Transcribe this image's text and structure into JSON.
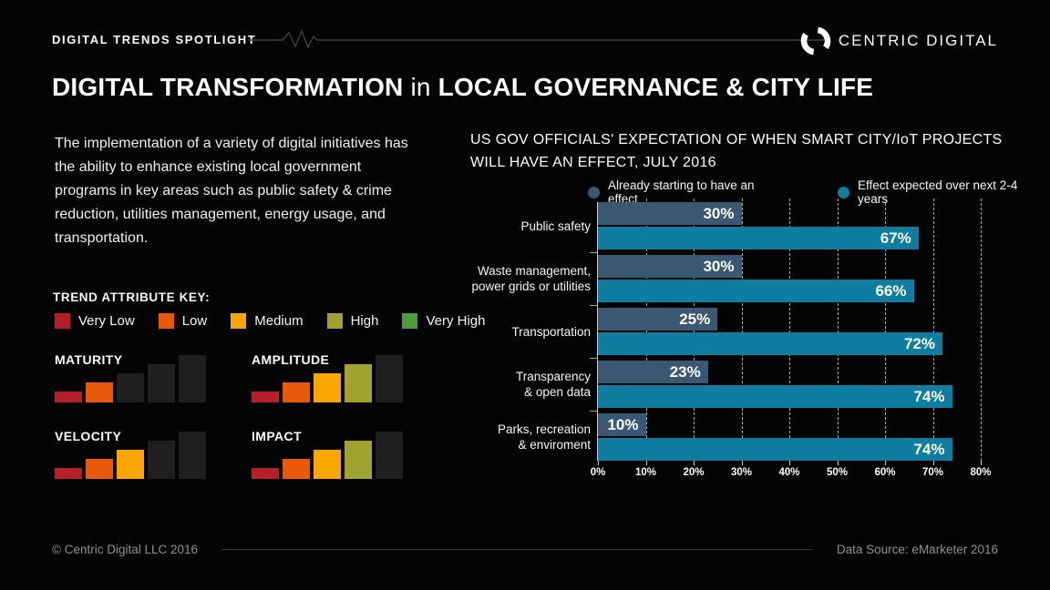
{
  "header": {
    "label": "DIGITAL TRENDS SPOTLIGHT",
    "brand": "CENTRIC DIGITAL"
  },
  "title": {
    "part_bold_1": "DIGITAL TRANSFORMATION",
    "part_mid": " in ",
    "part_bold_2": "LOCAL GOVERNANCE & CITY LIFE"
  },
  "intro_text": "The implementation of a variety of digital initiatives has the ability to enhance existing local government programs in key areas such as public safety & crime reduction, utilities management, energy usage, and transportation.",
  "trend_key": {
    "title": "TREND ATTRIBUTE KEY:",
    "empty_color": "#1f1f1f",
    "levels": [
      {
        "label": "Very Low",
        "color": "#b32029"
      },
      {
        "label": "Low",
        "color": "#e85a0a"
      },
      {
        "label": "Medium",
        "color": "#f9a602"
      },
      {
        "label": "High",
        "color": "#9ea42f"
      },
      {
        "label": "Very High",
        "color": "#4f9c3a"
      }
    ]
  },
  "trend_attributes": [
    {
      "label": "MATURITY",
      "level": 2
    },
    {
      "label": "AMPLITUDE",
      "level": 4
    },
    {
      "label": "VELOCITY",
      "level": 3
    },
    {
      "label": "IMPACT",
      "level": 4
    }
  ],
  "chart_data": {
    "type": "bar",
    "orientation": "horizontal",
    "title": "US GOV OFFICIALS' EXPECTATION OF WHEN SMART CITY/IoT PROJECTS WILL HAVE AN EFFECT, JULY 2016",
    "categories": [
      "Public safety",
      "Waste management,\npower grids or utilities",
      "Transportation",
      "Transparency\n& open data",
      "Parks, recreation\n& enviroment"
    ],
    "series": [
      {
        "name": "Already starting to have an effect",
        "color": "#3a5871",
        "values": [
          30,
          30,
          25,
          23,
          10
        ]
      },
      {
        "name": "Effect expected over next 2-4 years",
        "color": "#0e7d9f",
        "values": [
          67,
          66,
          72,
          74,
          74
        ]
      }
    ],
    "value_labels": [
      [
        "30%",
        "67%"
      ],
      [
        "30%",
        "66%"
      ],
      [
        "25%",
        "72%"
      ],
      [
        "23%",
        "74%"
      ],
      [
        "10%",
        "74%"
      ]
    ],
    "xlabel": "",
    "ylabel": "",
    "xlim": [
      0,
      80
    ],
    "ticks": [
      "0%",
      "10%",
      "20%",
      "30%",
      "40%",
      "50%",
      "60%",
      "70%",
      "80%"
    ],
    "grid": "dashed-vertical",
    "legend_position": "top"
  },
  "footer": {
    "left": "© Centric Digital LLC 2016",
    "right": "Data Source: eMarketer 2016"
  }
}
